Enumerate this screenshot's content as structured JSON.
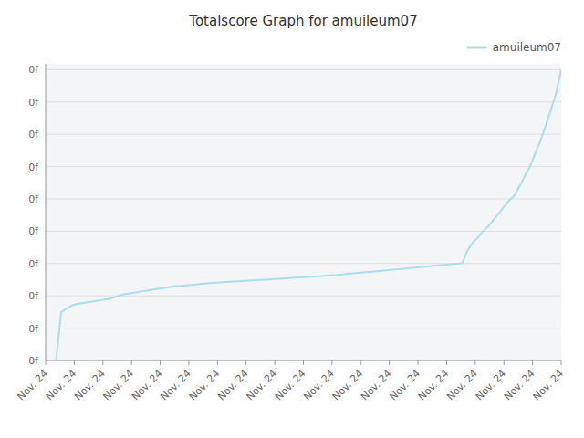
{
  "chart_data": {
    "type": "line",
    "title": "Totalscore Graph for amuileum07",
    "x": [
      0,
      1,
      2,
      3,
      4,
      5,
      6,
      7,
      8,
      9,
      10,
      11,
      12,
      13,
      14,
      15,
      16,
      17,
      18,
      19,
      20,
      21,
      22,
      23,
      24,
      25,
      26,
      27,
      28,
      29,
      30,
      31,
      32,
      33,
      34,
      35,
      36,
      37,
      38,
      39,
      40,
      41,
      42,
      43,
      44,
      45,
      46,
      47,
      48,
      49,
      50,
      51,
      52,
      53,
      54,
      55,
      56,
      57,
      58,
      59,
      60,
      61,
      62,
      63,
      64,
      65,
      66,
      67,
      68,
      69,
      70,
      71,
      72,
      73,
      74,
      75,
      76,
      77,
      78,
      79,
      80,
      81,
      82,
      83,
      84,
      85,
      86,
      87,
      88,
      89,
      90,
      91,
      92,
      93,
      94,
      95,
      96,
      97,
      98,
      99
    ],
    "series": [
      {
        "name": "amuileum07",
        "color": "#aaddee",
        "values": [
          0,
          0,
          0,
          300,
          320,
          340,
          350,
          355,
          360,
          365,
          370,
          375,
          380,
          390,
          400,
          410,
          415,
          420,
          425,
          430,
          435,
          440,
          445,
          450,
          455,
          460,
          462,
          465,
          467,
          470,
          475,
          478,
          480,
          482,
          484,
          486,
          488,
          490,
          492,
          494,
          496,
          498,
          500,
          502,
          504,
          506,
          508,
          510,
          512,
          514,
          516,
          518,
          520,
          522,
          525,
          528,
          530,
          533,
          536,
          539,
          542,
          545,
          548,
          551,
          554,
          557,
          560,
          563,
          566,
          569,
          572,
          575,
          578,
          581,
          584,
          587,
          590,
          593,
          596,
          599,
          602,
          680,
          730,
          760,
          800,
          830,
          870,
          910,
          950,
          990,
          1020,
          1080,
          1140,
          1200,
          1280,
          1360,
          1450,
          1550,
          1650,
          1800
        ]
      }
    ],
    "xlim": [
      0,
      99
    ],
    "xticks": [
      {
        "value": 0,
        "label": "Nov. 24"
      },
      {
        "value": 5.5,
        "label": "Nov. 24"
      },
      {
        "value": 11,
        "label": "Nov. 24"
      },
      {
        "value": 16.5,
        "label": "Nov. 24"
      },
      {
        "value": 22,
        "label": "Nov. 24"
      },
      {
        "value": 27.5,
        "label": "Nov. 24"
      },
      {
        "value": 33,
        "label": "Nov. 24"
      },
      {
        "value": 38.5,
        "label": "Nov. 24"
      },
      {
        "value": 44,
        "label": "Nov. 24"
      },
      {
        "value": 49.5,
        "label": "Nov. 24"
      },
      {
        "value": 55,
        "label": "Nov. 24"
      },
      {
        "value": 60.5,
        "label": "Nov. 24"
      },
      {
        "value": 66,
        "label": "Nov. 24"
      },
      {
        "value": 71.5,
        "label": "Nov. 24"
      },
      {
        "value": 77,
        "label": "Nov. 24"
      },
      {
        "value": 82.5,
        "label": "Nov. 24"
      },
      {
        "value": 88,
        "label": "Nov. 24"
      },
      {
        "value": 93.5,
        "label": "Nov. 24"
      },
      {
        "value": 99,
        "label": "Nov. 24"
      }
    ],
    "ylim": [
      0,
      1836
    ],
    "yticks": [
      {
        "value": 0,
        "label": "0f"
      },
      {
        "value": 200,
        "label": "0f"
      },
      {
        "value": 400,
        "label": "0f"
      },
      {
        "value": 600,
        "label": "0f"
      },
      {
        "value": 800,
        "label": "0f"
      },
      {
        "value": 1000,
        "label": "0f"
      },
      {
        "value": 1200,
        "label": "0f"
      },
      {
        "value": 1400,
        "label": "0f"
      },
      {
        "value": 1600,
        "label": "0f"
      },
      {
        "value": 1800,
        "label": "0f"
      }
    ],
    "grid": true,
    "legend": "top-right"
  }
}
